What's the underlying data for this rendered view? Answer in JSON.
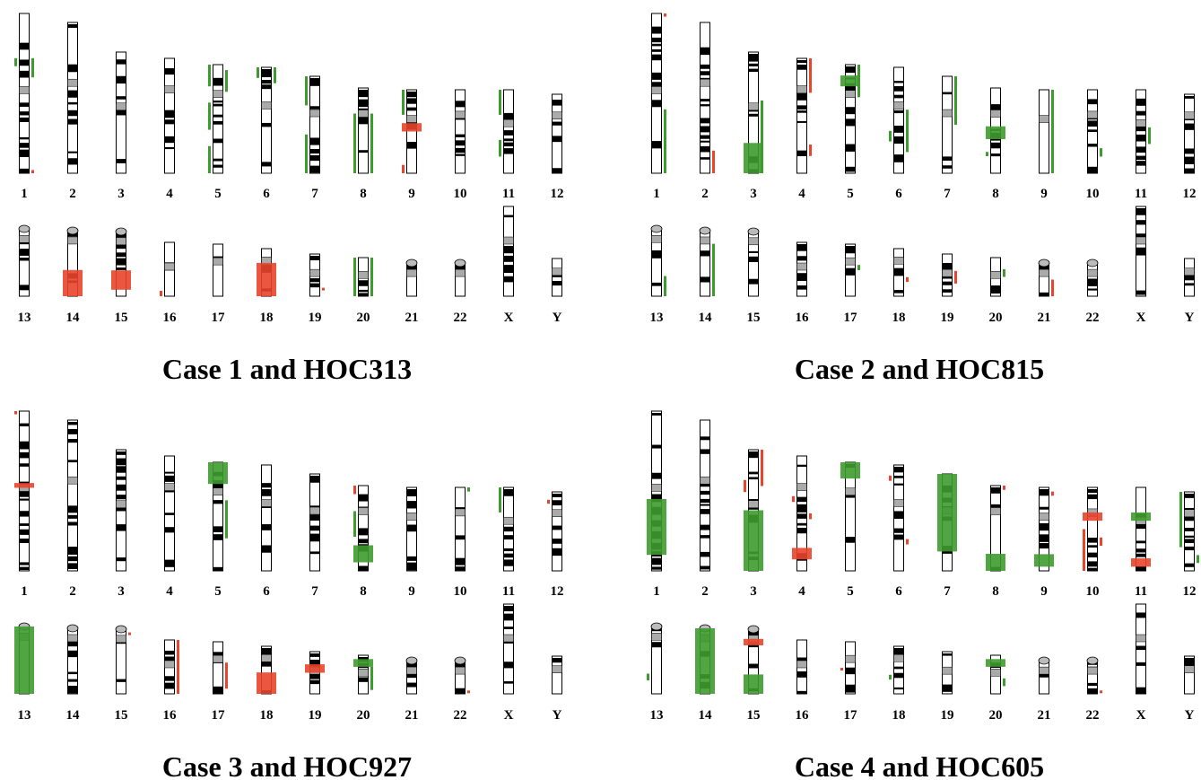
{
  "panels": [
    {
      "title": "Case 1 and HOC313",
      "chromosomes": [
        "1",
        "2",
        "3",
        "4",
        "5",
        "6",
        "7",
        "8",
        "9",
        "10",
        "11",
        "12",
        "13",
        "14",
        "15",
        "16",
        "17",
        "18",
        "19",
        "20",
        "21",
        "22",
        "X",
        "Y"
      ]
    },
    {
      "title": "Case 2 and HOC815",
      "chromosomes": [
        "1",
        "2",
        "3",
        "4",
        "5",
        "6",
        "7",
        "8",
        "9",
        "10",
        "11",
        "12",
        "13",
        "14",
        "15",
        "16",
        "17",
        "18",
        "19",
        "20",
        "21",
        "22",
        "X",
        "Y"
      ]
    },
    {
      "title": "Case 3 and HOC927",
      "chromosomes": [
        "1",
        "2",
        "3",
        "4",
        "5",
        "6",
        "7",
        "8",
        "9",
        "10",
        "11",
        "12",
        "13",
        "14",
        "15",
        "16",
        "17",
        "18",
        "19",
        "20",
        "21",
        "22",
        "X",
        "Y"
      ]
    },
    {
      "title": "Case 4 and HOC605",
      "chromosomes": [
        "1",
        "2",
        "3",
        "4",
        "5",
        "6",
        "7",
        "8",
        "9",
        "10",
        "11",
        "12",
        "13",
        "14",
        "15",
        "16",
        "17",
        "18",
        "19",
        "20",
        "21",
        "22",
        "X",
        "Y"
      ]
    }
  ]
}
